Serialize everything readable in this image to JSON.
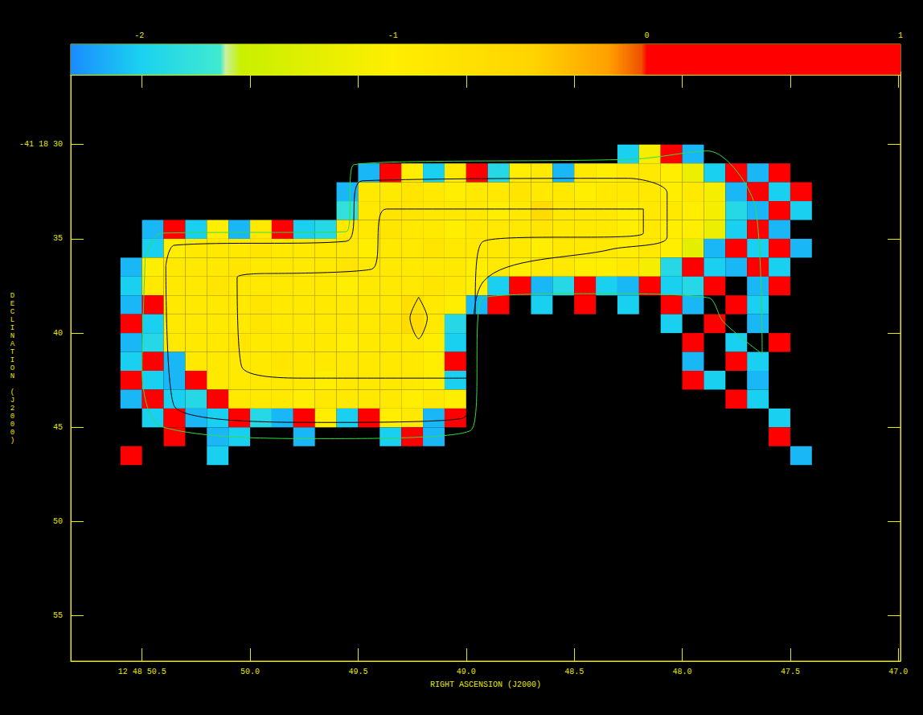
{
  "chart_data": {
    "type": "heatmap",
    "xlabel": "RIGHT ASCENSION (J2000)",
    "ylabel": "DECLINATION (J2000)",
    "grid": false,
    "xlim": [
      50.83,
      46.99
    ],
    "xticks": [
      {
        "value": 50.5,
        "label": "12 48 50.5"
      },
      {
        "value": 50,
        "label": "50.0"
      },
      49.5,
      {
        "value": 49,
        "label": "49.0"
      },
      48.5,
      {
        "value": 48,
        "label": "48.0"
      },
      47.5,
      {
        "value": 47,
        "label": "47.0"
      }
    ],
    "ylim": [
      57.4,
      26.3
    ],
    "yticks": [
      {
        "value": 30,
        "label": "-41 18 30"
      },
      35,
      40,
      45,
      50,
      55
    ],
    "colorbar": {
      "range": [
        -2.27,
        1
      ],
      "ticks": [
        -2,
        -1,
        0,
        1
      ]
    },
    "x": [
      50.55,
      50.45,
      50.35,
      50.25,
      50.15,
      50.05,
      49.95,
      49.85,
      49.75,
      49.65,
      49.55,
      49.45,
      49.35,
      49.25,
      49.15,
      49.05,
      48.95,
      48.85,
      48.75,
      48.65,
      48.55,
      48.45,
      48.35,
      48.25,
      48.15,
      48.05,
      47.95,
      47.85,
      47.75,
      47.65,
      47.55,
      47.45
    ],
    "y": [
      30.5,
      31.5,
      32.5,
      33.5,
      34.5,
      35.5,
      36.5,
      37.5,
      38.5,
      39.5,
      40.5,
      41.5,
      42.5,
      43.5,
      44.5,
      45.5,
      46.5
    ],
    "cells": [
      [
        null,
        null,
        null,
        null,
        null,
        null,
        null,
        null,
        null,
        null,
        null,
        null,
        null,
        null,
        null,
        null,
        null,
        null,
        null,
        null,
        null,
        null,
        null,
        -2.0,
        -1.1,
        0.3,
        -2.1,
        null,
        null,
        null,
        null,
        null
      ],
      [
        null,
        null,
        null,
        null,
        null,
        null,
        null,
        null,
        null,
        null,
        null,
        -2.1,
        0.3,
        -1.0,
        -2.0,
        -0.9,
        0.4,
        -1.9,
        -1.0,
        -0.9,
        -2.1,
        -0.9,
        -1.0,
        -0.9,
        -0.9,
        -1.0,
        -1.2,
        -2.0,
        0.4,
        -2.1,
        0.3,
        null
      ],
      [
        null,
        null,
        null,
        null,
        null,
        null,
        null,
        null,
        null,
        null,
        -2.1,
        -0.9,
        -0.9,
        -0.8,
        -0.9,
        -1.0,
        -0.9,
        -0.9,
        -0.8,
        -0.9,
        -0.9,
        -1.0,
        -0.9,
        -0.9,
        -0.9,
        -1.0,
        -0.9,
        -1.1,
        -2.1,
        0.3,
        -2.0,
        0.4
      ],
      [
        null,
        null,
        null,
        null,
        null,
        null,
        null,
        null,
        null,
        null,
        -1.8,
        -0.9,
        -0.8,
        -0.8,
        -0.9,
        -0.9,
        -0.9,
        -1.0,
        -0.9,
        -0.6,
        -0.9,
        -0.9,
        -0.9,
        -1.0,
        -0.9,
        -0.9,
        -1.0,
        -1.1,
        -1.9,
        -2.1,
        0.3,
        -2.0
      ],
      [
        null,
        -2.1,
        0.3,
        -2.0,
        -1.0,
        -2.1,
        -0.9,
        0.3,
        -2.0,
        -1.9,
        -0.9,
        -0.9,
        -0.8,
        -0.9,
        -0.9,
        -1.0,
        -0.9,
        -0.9,
        -0.9,
        -0.8,
        -0.9,
        -0.9,
        -0.9,
        -1.0,
        -0.9,
        -1.0,
        -1.0,
        -1.2,
        -2.0,
        0.4,
        -2.1,
        null
      ],
      [
        null,
        -2.0,
        -1.0,
        -0.9,
        -0.9,
        -0.9,
        -0.8,
        -0.9,
        -0.9,
        -0.9,
        -0.9,
        -1.0,
        -0.9,
        -0.9,
        -0.8,
        -0.9,
        -0.9,
        -0.9,
        -0.9,
        -1.0,
        -0.9,
        -0.9,
        -0.9,
        -1.0,
        -0.9,
        -1.0,
        -1.3,
        -2.1,
        0.3,
        -2.0,
        0.4,
        -2.1
      ],
      [
        -2.1,
        -1.0,
        -0.9,
        -0.9,
        -0.9,
        -0.8,
        -0.9,
        -0.9,
        -0.9,
        -0.9,
        -0.8,
        -0.9,
        -0.9,
        -0.9,
        -0.9,
        -0.9,
        -1.0,
        -0.9,
        -1.0,
        -0.9,
        -0.9,
        -1.0,
        -1.0,
        -0.9,
        -1.1,
        -1.9,
        0.3,
        -2.0,
        -2.1,
        0.3,
        -2.0,
        null
      ],
      [
        -2.0,
        -0.9,
        -0.9,
        -0.9,
        -0.8,
        -0.9,
        -0.9,
        -0.9,
        -0.9,
        -0.9,
        -1.0,
        -0.9,
        -0.9,
        -0.9,
        -0.8,
        -0.9,
        -1.0,
        -2.0,
        0.3,
        -2.1,
        -1.9,
        0.4,
        -2.0,
        -2.1,
        0.3,
        -2.0,
        -1.9,
        0.4,
        null,
        -2.1,
        0.3,
        null
      ],
      [
        -2.1,
        0.3,
        -0.9,
        -0.9,
        -0.9,
        -0.9,
        -0.8,
        -0.9,
        -0.9,
        -0.9,
        -0.9,
        -0.9,
        -0.9,
        -0.7,
        -0.9,
        -1.0,
        -2.1,
        0.3,
        null,
        -2.0,
        null,
        0.4,
        null,
        -2.0,
        null,
        0.3,
        -2.1,
        null,
        0.3,
        -2.0,
        null,
        null
      ],
      [
        0.3,
        -2.0,
        -0.9,
        -0.9,
        -0.9,
        -0.9,
        -0.8,
        -0.9,
        -0.9,
        -0.9,
        -0.9,
        -0.9,
        -0.8,
        -0.6,
        -0.9,
        -1.9,
        null,
        null,
        null,
        null,
        null,
        null,
        null,
        null,
        null,
        -2.0,
        null,
        0.3,
        null,
        -2.1,
        null,
        null
      ],
      [
        -2.1,
        -1.9,
        -0.9,
        -0.9,
        -0.9,
        -0.8,
        -0.9,
        -0.9,
        -0.9,
        -0.9,
        -1.0,
        -0.9,
        -0.9,
        -0.9,
        -1.0,
        -2.0,
        null,
        null,
        null,
        null,
        null,
        null,
        null,
        null,
        null,
        null,
        0.3,
        null,
        -2.0,
        null,
        0.3,
        null
      ],
      [
        -2.0,
        0.3,
        -2.1,
        -0.9,
        -0.9,
        -0.9,
        -0.9,
        -0.8,
        -0.9,
        -0.9,
        -0.9,
        -0.9,
        -0.9,
        -0.9,
        -1.0,
        0.3,
        null,
        null,
        null,
        null,
        null,
        null,
        null,
        null,
        null,
        null,
        -2.1,
        null,
        0.4,
        -2.0,
        null,
        null
      ],
      [
        0.3,
        -2.0,
        -2.1,
        0.4,
        -0.9,
        -0.9,
        -0.9,
        -0.9,
        -0.9,
        -1.0,
        -0.9,
        -0.9,
        -0.9,
        -0.9,
        -1.0,
        -2.0,
        null,
        null,
        null,
        null,
        null,
        null,
        null,
        null,
        null,
        null,
        0.3,
        -2.0,
        null,
        -2.1,
        null,
        null
      ],
      [
        -2.1,
        0.3,
        -2.0,
        -1.9,
        0.3,
        -0.9,
        -0.9,
        -0.9,
        -1.0,
        -0.9,
        -0.9,
        -0.9,
        -0.9,
        -1.0,
        -0.9,
        -1.0,
        null,
        null,
        null,
        null,
        null,
        null,
        null,
        null,
        null,
        null,
        null,
        null,
        0.3,
        -2.0,
        null,
        null
      ],
      [
        null,
        -2.0,
        0.3,
        -2.1,
        -2.0,
        0.4,
        -1.9,
        -2.1,
        0.3,
        -1.0,
        -2.0,
        0.3,
        -1.0,
        -0.9,
        -2.1,
        0.3,
        null,
        null,
        null,
        null,
        null,
        null,
        null,
        null,
        null,
        null,
        null,
        null,
        null,
        null,
        -2.0,
        null
      ],
      [
        null,
        null,
        0.3,
        null,
        -2.1,
        -2.0,
        null,
        null,
        -2.1,
        null,
        null,
        null,
        -2.0,
        0.3,
        -2.1,
        null,
        null,
        null,
        null,
        null,
        null,
        null,
        null,
        null,
        null,
        null,
        null,
        null,
        null,
        null,
        0.3,
        null
      ],
      [
        0.3,
        null,
        null,
        null,
        -2.0,
        null,
        null,
        null,
        null,
        null,
        null,
        null,
        null,
        null,
        null,
        null,
        null,
        null,
        null,
        null,
        null,
        null,
        null,
        null,
        null,
        null,
        null,
        null,
        null,
        null,
        null,
        -2.1
      ]
    ],
    "contours": [
      {
        "color": "#33dd44",
        "points": [
          [
            50.485,
            35.98
          ],
          [
            50.41,
            34.7
          ],
          [
            49.555,
            34.62
          ],
          [
            49.52,
            31.07
          ],
          [
            48.22,
            30.77
          ],
          [
            47.88,
            30.34
          ],
          [
            47.66,
            33.42
          ],
          [
            47.63,
            41.11
          ],
          [
            47.81,
            39.4
          ],
          [
            47.88,
            38.12
          ],
          [
            48.37,
            37.91
          ],
          [
            48.92,
            38.12
          ],
          [
            48.98,
            45.17
          ],
          [
            49.67,
            45.6
          ],
          [
            50.41,
            44.96
          ],
          [
            50.5,
            41.97
          ]
        ]
      },
      {
        "color": "#000000",
        "points": [
          [
            50.39,
            36.41
          ],
          [
            50.35,
            35.34
          ],
          [
            49.555,
            35.13
          ],
          [
            49.48,
            31.92
          ],
          [
            48.25,
            31.79
          ],
          [
            48.07,
            32.56
          ],
          [
            48.07,
            34.91
          ],
          [
            48.33,
            35.56
          ],
          [
            48.92,
            37.26
          ],
          [
            49.02,
            44.53
          ],
          [
            49.67,
            44.74
          ],
          [
            50.35,
            43.89
          ]
        ]
      },
      {
        "color": "#000000",
        "points": [
          [
            49.93,
            36.84
          ],
          [
            49.44,
            36.62
          ],
          [
            49.37,
            33.42
          ],
          [
            48.18,
            33.42
          ],
          [
            48.18,
            34.7
          ],
          [
            48.92,
            35.13
          ],
          [
            48.996,
            42.39
          ],
          [
            49.74,
            42.39
          ],
          [
            50.04,
            41.75
          ],
          [
            50.06,
            37.05
          ]
        ]
      },
      {
        "color": "#000000",
        "points": [
          [
            49.22,
            38.1
          ],
          [
            49.18,
            39.2
          ],
          [
            49.22,
            40.3
          ],
          [
            49.26,
            39.2
          ]
        ]
      }
    ]
  }
}
